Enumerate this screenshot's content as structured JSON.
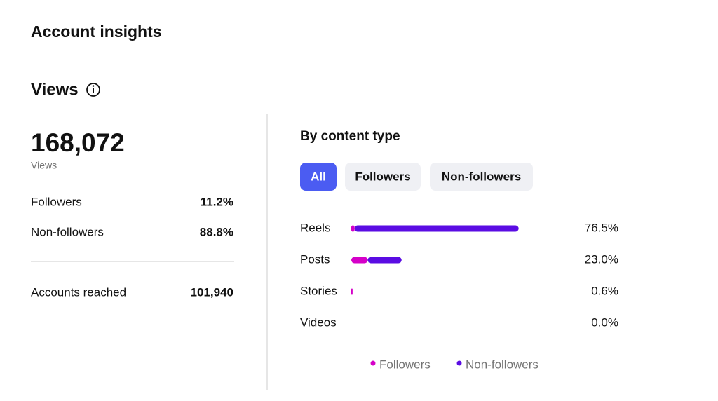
{
  "header": {
    "title": "Account insights"
  },
  "section": {
    "title": "Views"
  },
  "summary": {
    "total": "168,072",
    "total_label": "Views",
    "rows": [
      [
        "Followers",
        "11.2%"
      ],
      [
        "Non-followers",
        "88.8%"
      ]
    ],
    "reached": [
      "Accounts reached",
      "101,940"
    ]
  },
  "chart_data": {
    "type": "stacked-bar",
    "title": "By content type",
    "tabs": [
      "All",
      "Followers",
      "Non-followers"
    ],
    "categories": [
      "Reels",
      "Posts",
      "Stories",
      "Videos"
    ],
    "series": [
      {
        "name": "Followers",
        "color": "#d500c8",
        "values": [
          1.5,
          7.5,
          0.6,
          0.0
        ]
      },
      {
        "name": "Non-followers",
        "color": "#5a0ce3",
        "values": [
          75.0,
          15.5,
          0.0,
          0.0
        ]
      }
    ],
    "value_labels": [
      "76.5%",
      "23.0%",
      "0.6%",
      "0.0%"
    ],
    "xlim": [
      0,
      100
    ]
  }
}
